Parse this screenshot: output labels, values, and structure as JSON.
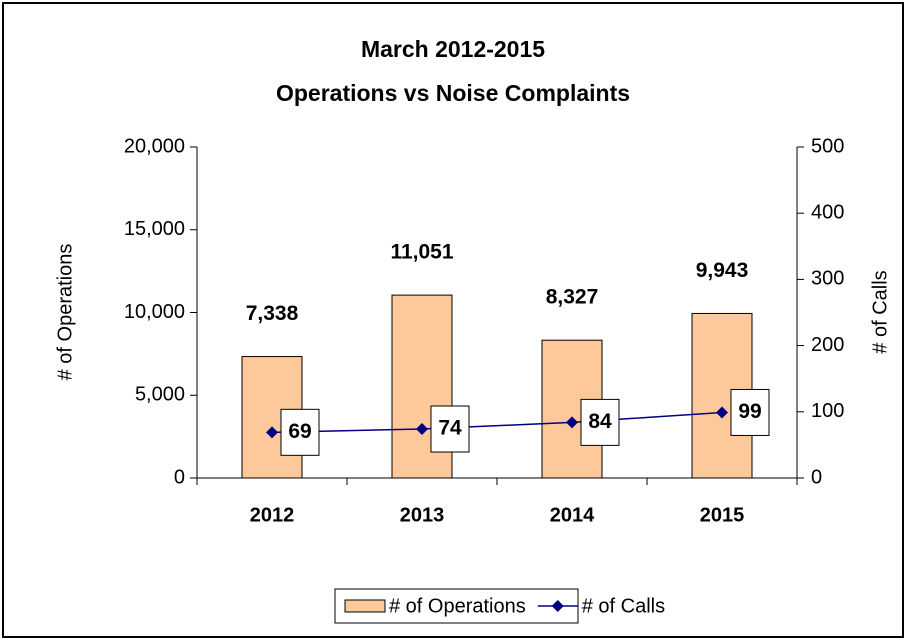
{
  "chart_data": {
    "type": "bar",
    "title": "March 2012-2015",
    "subtitle": "Operations vs Noise Complaints",
    "categories": [
      "2012",
      "2013",
      "2014",
      "2015"
    ],
    "y_label": "# of Operations",
    "y2_label": "# of Calls",
    "ylim": [
      0,
      20000
    ],
    "yticks": [
      0,
      {
        "value": 5000,
        "label": "5,000"
      },
      {
        "value": 10000,
        "label": "10,000"
      },
      {
        "value": 15000,
        "label": "15,000"
      },
      {
        "value": 20000,
        "label": "20,000"
      }
    ],
    "y2lim": [
      0,
      500
    ],
    "y2ticks": [
      0,
      100,
      200,
      300,
      400,
      500
    ],
    "legend": "bottom",
    "series": [
      {
        "name": "# of Operations",
        "type": "bar",
        "color": "#fdc99a",
        "values": [
          7338,
          11051,
          8327,
          9943
        ],
        "value_labels": [
          "7,338",
          "11,051",
          "8,327",
          "9,943"
        ]
      },
      {
        "name": "# of Calls",
        "type": "line",
        "axis": "y2",
        "color": "#000080",
        "values": [
          69,
          74,
          84,
          99
        ]
      }
    ]
  }
}
